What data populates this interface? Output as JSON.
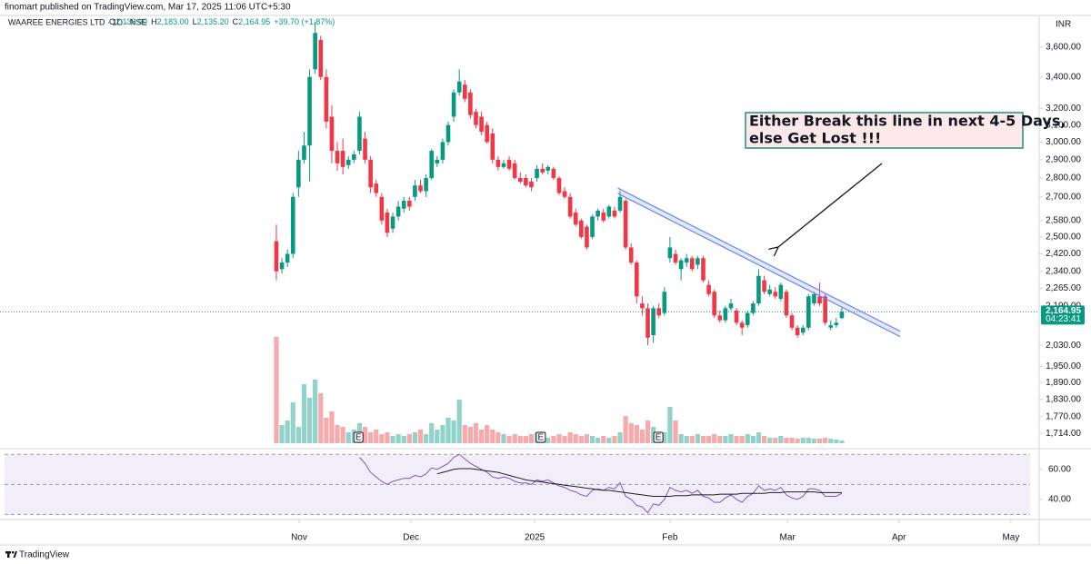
{
  "header": {
    "published": "finomart published on TradingView.com, Mar 17, 2025 11:06 UTC+5:30",
    "symbol": "WAAREE ENERGIES LTD · 1D · NSE",
    "quote": [
      {
        "key": "O",
        "value": "2,138.90"
      },
      {
        "key": "H",
        "value": "2,183.00"
      },
      {
        "key": "L",
        "value": "2,135.20"
      },
      {
        "key": "C",
        "value": "2,164.95"
      }
    ],
    "change": "+39.70 (+1.87%)"
  },
  "chart_data": {
    "type": "candlestick",
    "currency": "INR",
    "log_scale": true,
    "xlim": [
      -49.85,
      137.6
    ],
    "xticks": [
      {
        "value": 4.1,
        "label": "Nov"
      },
      {
        "value": 24.3,
        "label": "Dec"
      },
      {
        "value": 46.6,
        "label": "2025"
      },
      {
        "value": 71,
        "label": "Feb"
      },
      {
        "value": 92.2,
        "label": "Mar"
      },
      {
        "value": 112.3,
        "label": "Apr"
      },
      {
        "value": 132.5,
        "label": "May"
      }
    ],
    "ylim": [
      1676,
      3820
    ],
    "yticks": [
      {
        "value": 3600,
        "label": "3,600.00"
      },
      {
        "value": 3400,
        "label": "3,400.00"
      },
      {
        "value": 3200,
        "label": "3,200.00"
      },
      {
        "value": 3100,
        "label": "3,100.00"
      },
      {
        "value": 3000,
        "label": "3,000.00"
      },
      {
        "value": 2900,
        "label": "2,900.00"
      },
      {
        "value": 2800,
        "label": "2,800.00"
      },
      {
        "value": 2700,
        "label": "2,700.00"
      },
      {
        "value": 2580,
        "label": "2,580.00"
      },
      {
        "value": 2500,
        "label": "2,500.00"
      },
      {
        "value": 2420,
        "label": "2,420.00"
      },
      {
        "value": 2340,
        "label": "2,340.00"
      },
      {
        "value": 2265,
        "label": "2,265.00"
      },
      {
        "value": 2190,
        "label": "2,190.00"
      },
      {
        "value": 2030,
        "label": "2,030.00"
      },
      {
        "value": 1950,
        "label": "1,950.00"
      },
      {
        "value": 1890,
        "label": "1,890.00"
      },
      {
        "value": 1830,
        "label": "1,830.00"
      },
      {
        "value": 1770,
        "label": "1,770.00"
      },
      {
        "value": 1714,
        "label": "1,714.00"
      }
    ],
    "up_color": "#089981",
    "down_color": "#f23645",
    "ohlc": [
      [
        2480,
        2560,
        2300,
        2340
      ],
      [
        2350,
        2400,
        2330,
        2380
      ],
      [
        2380,
        2440,
        2360,
        2420
      ],
      [
        2420,
        2720,
        2400,
        2700
      ],
      [
        2750,
        2950,
        2700,
        2900
      ],
      [
        2900,
        3060,
        2880,
        2980
      ],
      [
        2980,
        3450,
        2780,
        3400
      ],
      [
        3450,
        3780,
        3420,
        3700
      ],
      [
        3650,
        3680,
        3380,
        3400
      ],
      [
        3400,
        3450,
        3080,
        3120
      ],
      [
        3150,
        3220,
        2880,
        2950
      ],
      [
        2950,
        3000,
        2840,
        2880
      ],
      [
        2950,
        3020,
        2820,
        2860
      ],
      [
        2870,
        2920,
        2850,
        2900
      ],
      [
        2900,
        2950,
        2880,
        2930
      ],
      [
        2950,
        3180,
        2930,
        3150
      ],
      [
        3020,
        3060,
        2880,
        2900
      ],
      [
        2900,
        2920,
        2720,
        2750
      ],
      [
        2770,
        2790,
        2700,
        2720
      ],
      [
        2700,
        2720,
        2560,
        2580
      ],
      [
        2620,
        2640,
        2500,
        2520
      ],
      [
        2540,
        2620,
        2520,
        2600
      ],
      [
        2600,
        2680,
        2580,
        2650
      ],
      [
        2640,
        2700,
        2620,
        2680
      ],
      [
        2680,
        2700,
        2630,
        2650
      ],
      [
        2700,
        2790,
        2680,
        2760
      ],
      [
        2760,
        2790,
        2720,
        2730
      ],
      [
        2730,
        2820,
        2700,
        2800
      ],
      [
        2800,
        2960,
        2790,
        2950
      ],
      [
        2880,
        2920,
        2860,
        2900
      ],
      [
        2900,
        3020,
        2880,
        3000
      ],
      [
        3000,
        3120,
        2980,
        3100
      ],
      [
        3150,
        3320,
        3120,
        3300
      ],
      [
        3300,
        3450,
        3280,
        3370
      ],
      [
        3350,
        3380,
        3240,
        3260
      ],
      [
        3300,
        3320,
        3140,
        3160
      ],
      [
        3180,
        3200,
        3080,
        3100
      ],
      [
        3150,
        3180,
        3040,
        3060
      ],
      [
        3100,
        3120,
        2990,
        3000
      ],
      [
        3050,
        3080,
        2880,
        2900
      ],
      [
        2900,
        2920,
        2840,
        2860
      ],
      [
        2860,
        2900,
        2850,
        2880
      ],
      [
        2900,
        2920,
        2840,
        2850
      ],
      [
        2880,
        2900,
        2790,
        2800
      ],
      [
        2800,
        2830,
        2770,
        2780
      ],
      [
        2800,
        2820,
        2750,
        2760
      ],
      [
        2780,
        2800,
        2730,
        2750
      ],
      [
        2800,
        2870,
        2780,
        2850
      ],
      [
        2850,
        2880,
        2820,
        2830
      ],
      [
        2840,
        2870,
        2820,
        2860
      ],
      [
        2850,
        2860,
        2790,
        2800
      ],
      [
        2800,
        2810,
        2710,
        2720
      ],
      [
        2730,
        2750,
        2690,
        2700
      ],
      [
        2700,
        2720,
        2590,
        2600
      ],
      [
        2620,
        2640,
        2550,
        2560
      ],
      [
        2580,
        2590,
        2490,
        2500
      ],
      [
        2550,
        2560,
        2440,
        2450
      ],
      [
        2500,
        2610,
        2490,
        2600
      ],
      [
        2600,
        2640,
        2580,
        2630
      ],
      [
        2620,
        2640,
        2570,
        2580
      ],
      [
        2600,
        2660,
        2590,
        2650
      ],
      [
        2630,
        2650,
        2590,
        2600
      ],
      [
        2630,
        2730,
        2620,
        2700
      ],
      [
        2680,
        2690,
        2440,
        2450
      ],
      [
        2450,
        2470,
        2370,
        2380
      ],
      [
        2380,
        2390,
        2200,
        2230
      ],
      [
        2200,
        2230,
        2150,
        2180
      ],
      [
        2180,
        2200,
        2030,
        2060
      ],
      [
        2070,
        2190,
        2040,
        2180
      ],
      [
        2180,
        2200,
        2140,
        2150
      ],
      [
        2160,
        2270,
        2150,
        2250
      ],
      [
        2400,
        2500,
        2380,
        2450
      ],
      [
        2420,
        2440,
        2370,
        2380
      ],
      [
        2350,
        2400,
        2300,
        2390
      ],
      [
        2380,
        2420,
        2360,
        2400
      ],
      [
        2400,
        2410,
        2340,
        2350
      ],
      [
        2370,
        2410,
        2350,
        2400
      ],
      [
        2400,
        2410,
        2290,
        2300
      ],
      [
        2280,
        2300,
        2230,
        2240
      ],
      [
        2250,
        2260,
        2140,
        2150
      ],
      [
        2150,
        2170,
        2120,
        2130
      ],
      [
        2130,
        2190,
        2120,
        2180
      ],
      [
        2180,
        2220,
        2170,
        2200
      ],
      [
        2170,
        2180,
        2110,
        2120
      ],
      [
        2120,
        2130,
        2070,
        2100
      ],
      [
        2110,
        2170,
        2100,
        2160
      ],
      [
        2160,
        2210,
        2150,
        2200
      ],
      [
        2200,
        2350,
        2190,
        2320
      ],
      [
        2300,
        2320,
        2240,
        2250
      ],
      [
        2240,
        2280,
        2230,
        2260
      ],
      [
        2250,
        2270,
        2220,
        2230
      ],
      [
        2220,
        2290,
        2210,
        2280
      ],
      [
        2250,
        2260,
        2140,
        2150
      ],
      [
        2150,
        2160,
        2090,
        2100
      ],
      [
        2100,
        2110,
        2060,
        2070
      ],
      [
        2080,
        2110,
        2070,
        2100
      ],
      [
        2100,
        2240,
        2090,
        2230
      ],
      [
        2200,
        2250,
        2190,
        2240
      ],
      [
        2230,
        2290,
        2190,
        2200
      ],
      [
        2230,
        2240,
        2110,
        2120
      ],
      [
        2100,
        2130,
        2090,
        2110
      ],
      [
        2110,
        2140,
        2100,
        2120
      ],
      [
        2138.9,
        2183,
        2135.2,
        2164.95
      ]
    ],
    "volume": {
      "up_color": "#92d2c9",
      "down_color": "#f7a9ab",
      "values": [
        117,
        20,
        25,
        45,
        18,
        65,
        50,
        70,
        55,
        28,
        35,
        20,
        18,
        12,
        15,
        22,
        18,
        12,
        15,
        10,
        12,
        8,
        10,
        8,
        10,
        12,
        15,
        10,
        22,
        15,
        20,
        28,
        25,
        48,
        20,
        18,
        22,
        15,
        20,
        15,
        12,
        10,
        8,
        10,
        8,
        8,
        10,
        12,
        8,
        6,
        8,
        10,
        8,
        12,
        10,
        8,
        10,
        8,
        6,
        8,
        6,
        8,
        12,
        30,
        22,
        20,
        15,
        25,
        18,
        10,
        12,
        40,
        25,
        10,
        8,
        8,
        10,
        8,
        8,
        10,
        8,
        8,
        10,
        8,
        8,
        10,
        8,
        12,
        8,
        6,
        6,
        8,
        6,
        6,
        5,
        6,
        6,
        5,
        5,
        6,
        5,
        4,
        3
      ]
    },
    "events": [
      {
        "x": 14.8,
        "label": "E"
      },
      {
        "x": 47.7,
        "label": "E"
      },
      {
        "x": 68.9,
        "label": "E"
      }
    ],
    "last_price": {
      "value": 2164.95,
      "label": "2,164.95"
    },
    "countdown": "04:23:41",
    "trendline": {
      "x": [
        61.6,
        112.5
      ],
      "y": [
        2732,
        2075
      ],
      "color": "#6b86f0"
    },
    "annotation": [
      "Either Break this line in next 4-5 Days,",
      "else Get Lost !!!"
    ],
    "rsi": {
      "ylim": [
        29,
        72
      ],
      "yticks": [
        {
          "value": 60,
          "label": "60.00"
        },
        {
          "value": 40,
          "label": "40.00"
        }
      ],
      "levels": [
        70,
        50,
        30
      ],
      "color": "#7e57c2",
      "values": [
        null,
        null,
        null,
        null,
        null,
        null,
        null,
        null,
        null,
        null,
        null,
        null,
        null,
        null,
        null,
        68,
        64,
        58,
        55,
        52,
        50,
        52,
        53,
        54,
        54,
        56,
        55,
        57,
        61,
        60,
        62,
        64,
        68,
        70,
        67,
        64,
        62,
        60,
        58,
        55,
        54,
        55,
        54,
        52,
        51,
        51,
        50,
        53,
        52,
        53,
        51,
        49,
        48,
        46,
        45,
        43,
        42,
        46,
        47,
        46,
        48,
        47,
        51,
        42,
        40,
        36,
        35,
        31,
        37,
        36,
        40,
        48,
        46,
        45,
        46,
        44,
        46,
        42,
        41,
        38,
        38,
        41,
        43,
        40,
        38,
        42,
        44,
        49,
        46,
        47,
        46,
        48,
        43,
        41,
        40,
        42,
        47,
        47,
        46,
        42,
        42,
        42,
        44
      ],
      "ma": {
        "color": "#1e1e1e",
        "values": [
          null,
          null,
          null,
          null,
          null,
          null,
          null,
          null,
          null,
          null,
          null,
          null,
          null,
          null,
          null,
          null,
          null,
          null,
          null,
          null,
          null,
          null,
          null,
          null,
          null,
          null,
          null,
          null,
          null,
          57,
          58,
          59,
          60,
          60.5,
          60.5,
          60.5,
          60,
          59.5,
          59,
          58.5,
          58,
          57,
          56,
          55,
          54,
          53,
          52.5,
          52,
          51.5,
          51,
          50.5,
          50,
          49.5,
          49,
          48.5,
          48,
          47.5,
          47,
          46.5,
          46,
          46,
          45.5,
          45,
          44.5,
          44,
          43.5,
          43,
          42.5,
          42,
          42,
          42,
          42,
          42.5,
          42.5,
          42.5,
          43,
          43,
          43,
          43,
          43,
          43.5,
          43.5,
          43.5,
          43.5,
          44,
          44,
          44,
          44,
          44,
          44.5,
          44.5,
          44.5,
          45,
          45,
          45,
          45,
          45,
          45,
          44.5,
          44.5,
          44.5,
          44.5,
          44.5
        ]
      }
    }
  },
  "footer": {
    "brand": "TradingView"
  }
}
